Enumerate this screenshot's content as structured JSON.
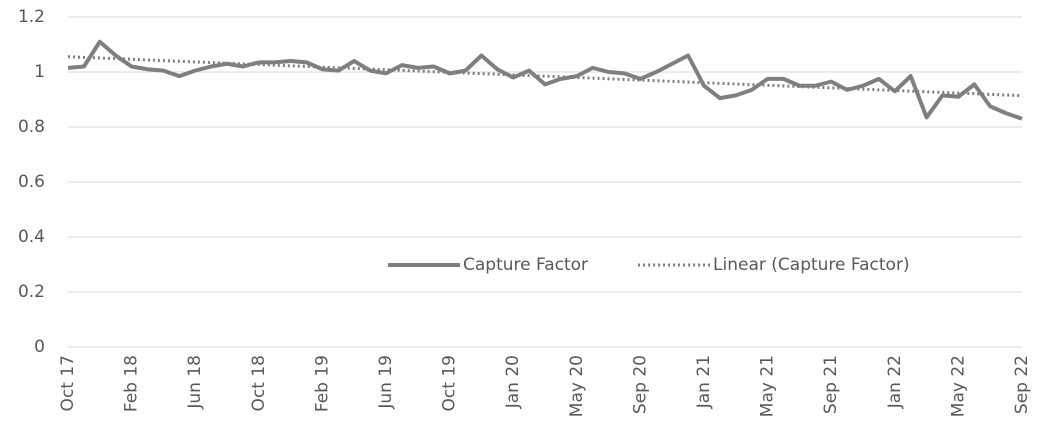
{
  "chart_data": {
    "type": "line",
    "categories": [
      "Oct 17",
      null,
      null,
      null,
      "Feb 18",
      null,
      null,
      null,
      "Jun 18",
      null,
      null,
      null,
      "Oct 18",
      null,
      null,
      null,
      "Feb 19",
      null,
      null,
      null,
      "Jun 19",
      null,
      null,
      null,
      "Oct 19",
      null,
      null,
      null,
      "Jan 20",
      null,
      null,
      null,
      "May 20",
      null,
      null,
      null,
      "Sep 20",
      null,
      null,
      null,
      "Jan 21",
      null,
      null,
      null,
      "May 21",
      null,
      null,
      null,
      "Sep 21",
      null,
      null,
      null,
      "Jan 22",
      null,
      null,
      null,
      "May 22",
      null,
      null,
      null,
      "Sep 22"
    ],
    "series": [
      {
        "name": "Capture Factor",
        "color": "#7f7f7f",
        "values": [
          1.015,
          1.02,
          1.11,
          1.06,
          1.02,
          1.01,
          1.005,
          0.985,
          1.005,
          1.02,
          1.03,
          1.02,
          1.035,
          1.035,
          1.04,
          1.035,
          1.01,
          1.005,
          1.04,
          1.005,
          0.995,
          1.025,
          1.015,
          1.02,
          0.995,
          1.005,
          1.06,
          1.01,
          0.98,
          1.005,
          0.955,
          0.975,
          0.985,
          1.015,
          1.0,
          0.995,
          0.975,
          1.0,
          1.03,
          1.06,
          0.95,
          0.905,
          0.915,
          0.935,
          0.975,
          0.975,
          0.95,
          0.95,
          0.965,
          0.935,
          0.95,
          0.975,
          0.93,
          0.985,
          0.835,
          0.915,
          0.91,
          0.955,
          0.875,
          0.85,
          0.83
        ],
        "trendline": {
          "type": "linear",
          "name": "Linear (Capture Factor)",
          "color": "#7f7f7f"
        }
      }
    ],
    "ylim": [
      0,
      1.2
    ],
    "yticks": [
      0,
      0.2,
      0.4,
      0.6,
      0.8,
      1,
      1.2
    ],
    "grid": true,
    "legend": "lower right"
  }
}
